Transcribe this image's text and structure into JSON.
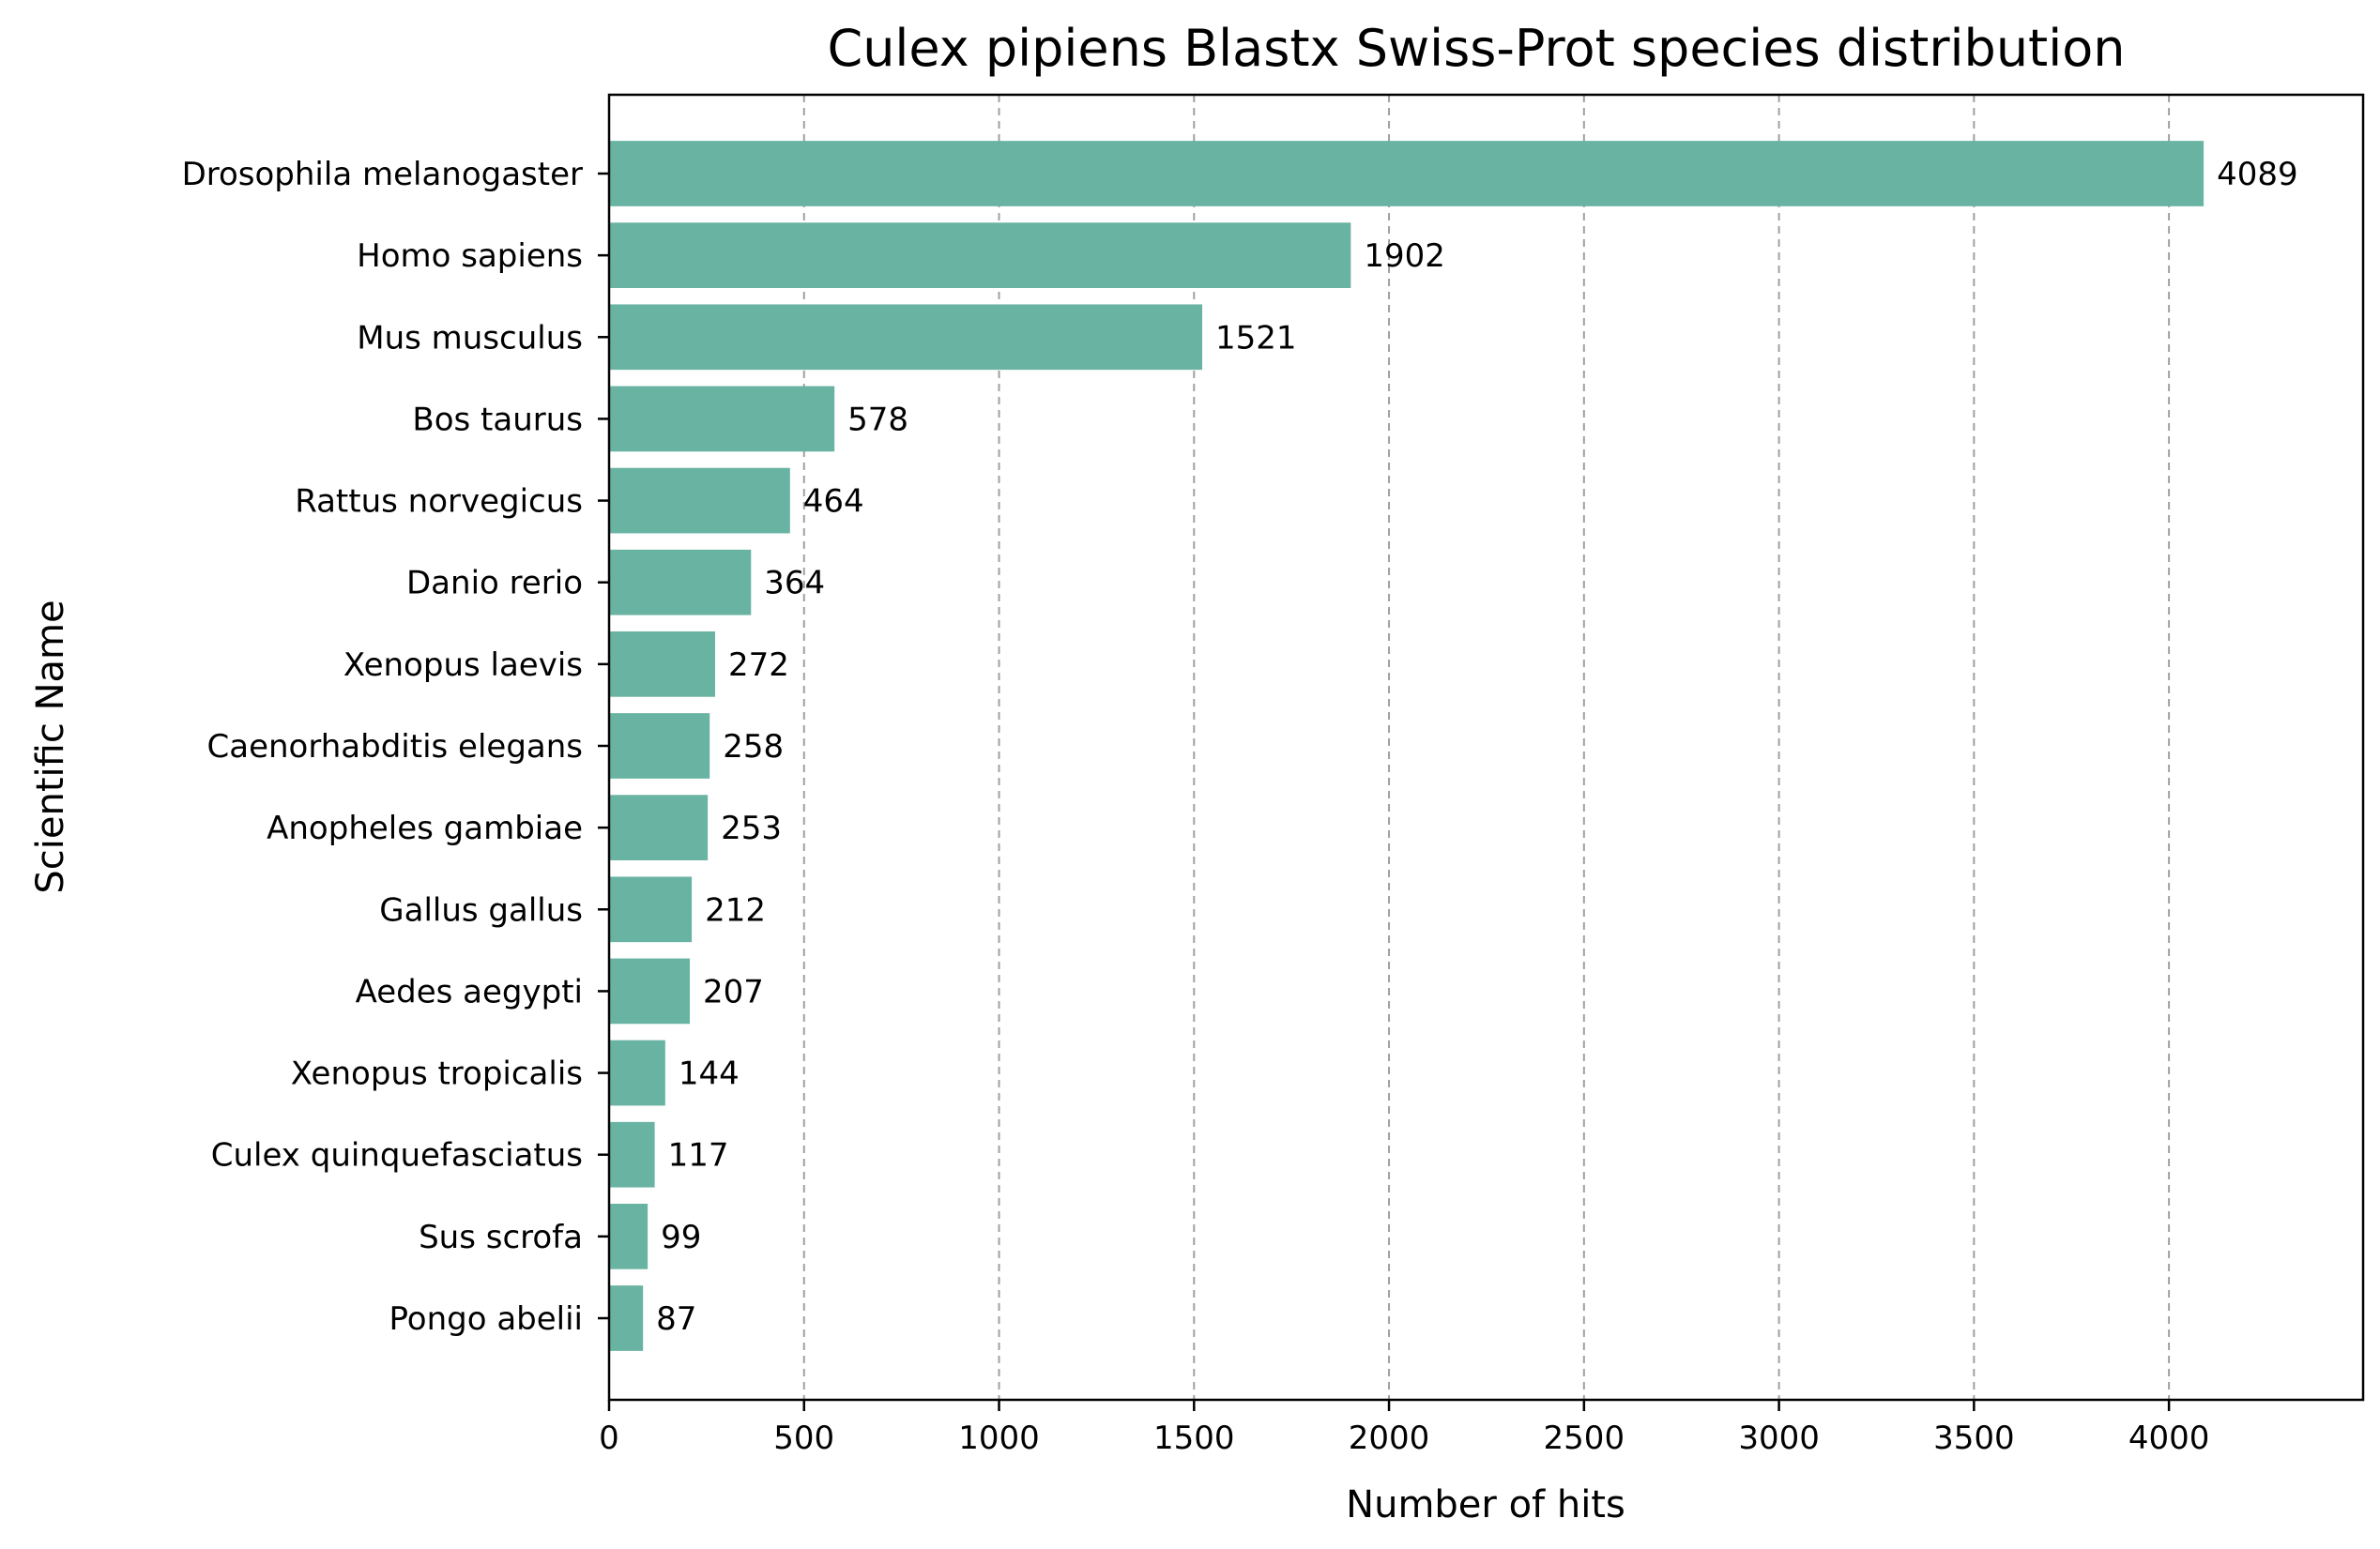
{
  "chart_data": {
    "type": "bar",
    "orientation": "horizontal",
    "title": "Culex pipiens Blastx Swiss-Prot species distribution",
    "xlabel": "Number of hits",
    "ylabel": "Scientific Name",
    "categories": [
      "Drosophila melanogaster",
      "Homo sapiens",
      "Mus musculus",
      "Bos taurus",
      "Rattus norvegicus",
      "Danio rerio",
      "Xenopus laevis",
      "Caenorhabditis elegans",
      "Anopheles gambiae",
      "Gallus gallus",
      "Aedes aegypti",
      "Xenopus tropicalis",
      "Culex quinquefasciatus",
      "Sus scrofa",
      "Pongo abelii"
    ],
    "values": [
      4089,
      1902,
      1521,
      578,
      464,
      364,
      272,
      258,
      253,
      212,
      207,
      144,
      117,
      99,
      87
    ],
    "xlim": [
      0,
      4497.9
    ],
    "xticks": [
      0,
      500,
      1000,
      1500,
      2000,
      2500,
      3000,
      3500,
      4000
    ],
    "grid": "x-axis dashed",
    "bar_color": "#69b3a2",
    "legend": "none"
  }
}
